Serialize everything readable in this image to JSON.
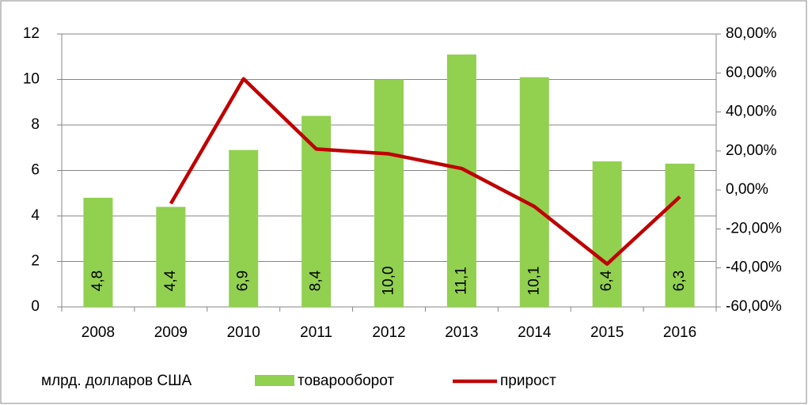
{
  "chart_data": {
    "type": "bar",
    "ylabel": "млрд. долларов США",
    "categories": [
      "2008",
      "2009",
      "2010",
      "2011",
      "2012",
      "2013",
      "2014",
      "2015",
      "2016"
    ],
    "series": [
      {
        "name": "товарооборот",
        "type": "bar",
        "color": "#92d050",
        "values": [
          4.8,
          4.4,
          6.9,
          8.4,
          10.0,
          11.1,
          10.1,
          6.4,
          6.3
        ],
        "value_labels": [
          "4,8",
          "4,4",
          "6,9",
          "8,4",
          "10,0",
          "11,1",
          "10,1",
          "6,4",
          "6,3"
        ]
      },
      {
        "name": "прирост",
        "type": "line",
        "axis": "y2",
        "color": "#c00000",
        "values": [
          null,
          -7,
          57,
          21,
          18.5,
          11,
          -8.5,
          -38,
          -3.5
        ]
      }
    ],
    "ylim": [
      0,
      12
    ],
    "yticks": [
      0,
      2,
      4,
      6,
      8,
      10,
      12
    ],
    "y2lim": [
      -60,
      80
    ],
    "y2ticks": [
      {
        "value": -60,
        "label": "-60,00%"
      },
      {
        "value": -40,
        "label": "-40,00%"
      },
      {
        "value": -20,
        "label": "-20,00%"
      },
      {
        "value": 0,
        "label": "0,00%"
      },
      {
        "value": 20,
        "label": "20,00%"
      },
      {
        "value": 40,
        "label": "40,00%"
      },
      {
        "value": 60,
        "label": "60,00%"
      },
      {
        "value": 80,
        "label": "80,00%"
      }
    ],
    "grid": true,
    "legend": "bottom"
  }
}
